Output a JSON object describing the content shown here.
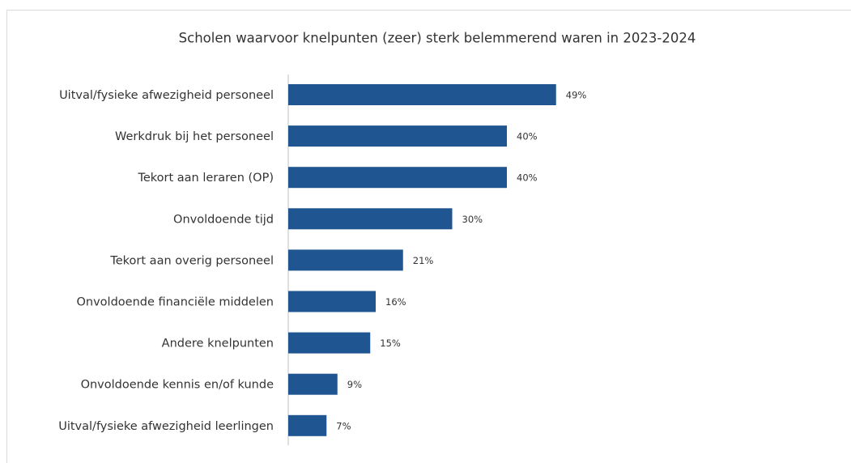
{
  "chart_data": {
    "type": "hbar",
    "title": "Scholen waarvoor knelpunten (zeer) sterk belemmerend waren in 2023-2024",
    "categories": [
      "Uitval/fysieke afwezigheid personeel",
      "Werkdruk bij het personeel",
      "Tekort aan leraren (OP)",
      "Onvoldoende tijd",
      "Tekort aan overig personeel",
      "Onvoldoende financiële middelen",
      "Andere knelpunten",
      "Onvoldoende kennis en/of kunde",
      "Uitval/fysieke afwezigheid leerlingen"
    ],
    "values": [
      49,
      40,
      40,
      30,
      21,
      16,
      15,
      9,
      7
    ],
    "value_labels": [
      "49%",
      "40%",
      "40%",
      "30%",
      "21%",
      "16%",
      "15%",
      "9%",
      "7%"
    ],
    "color": "#1f5591",
    "xlim": [
      0,
      100
    ]
  }
}
